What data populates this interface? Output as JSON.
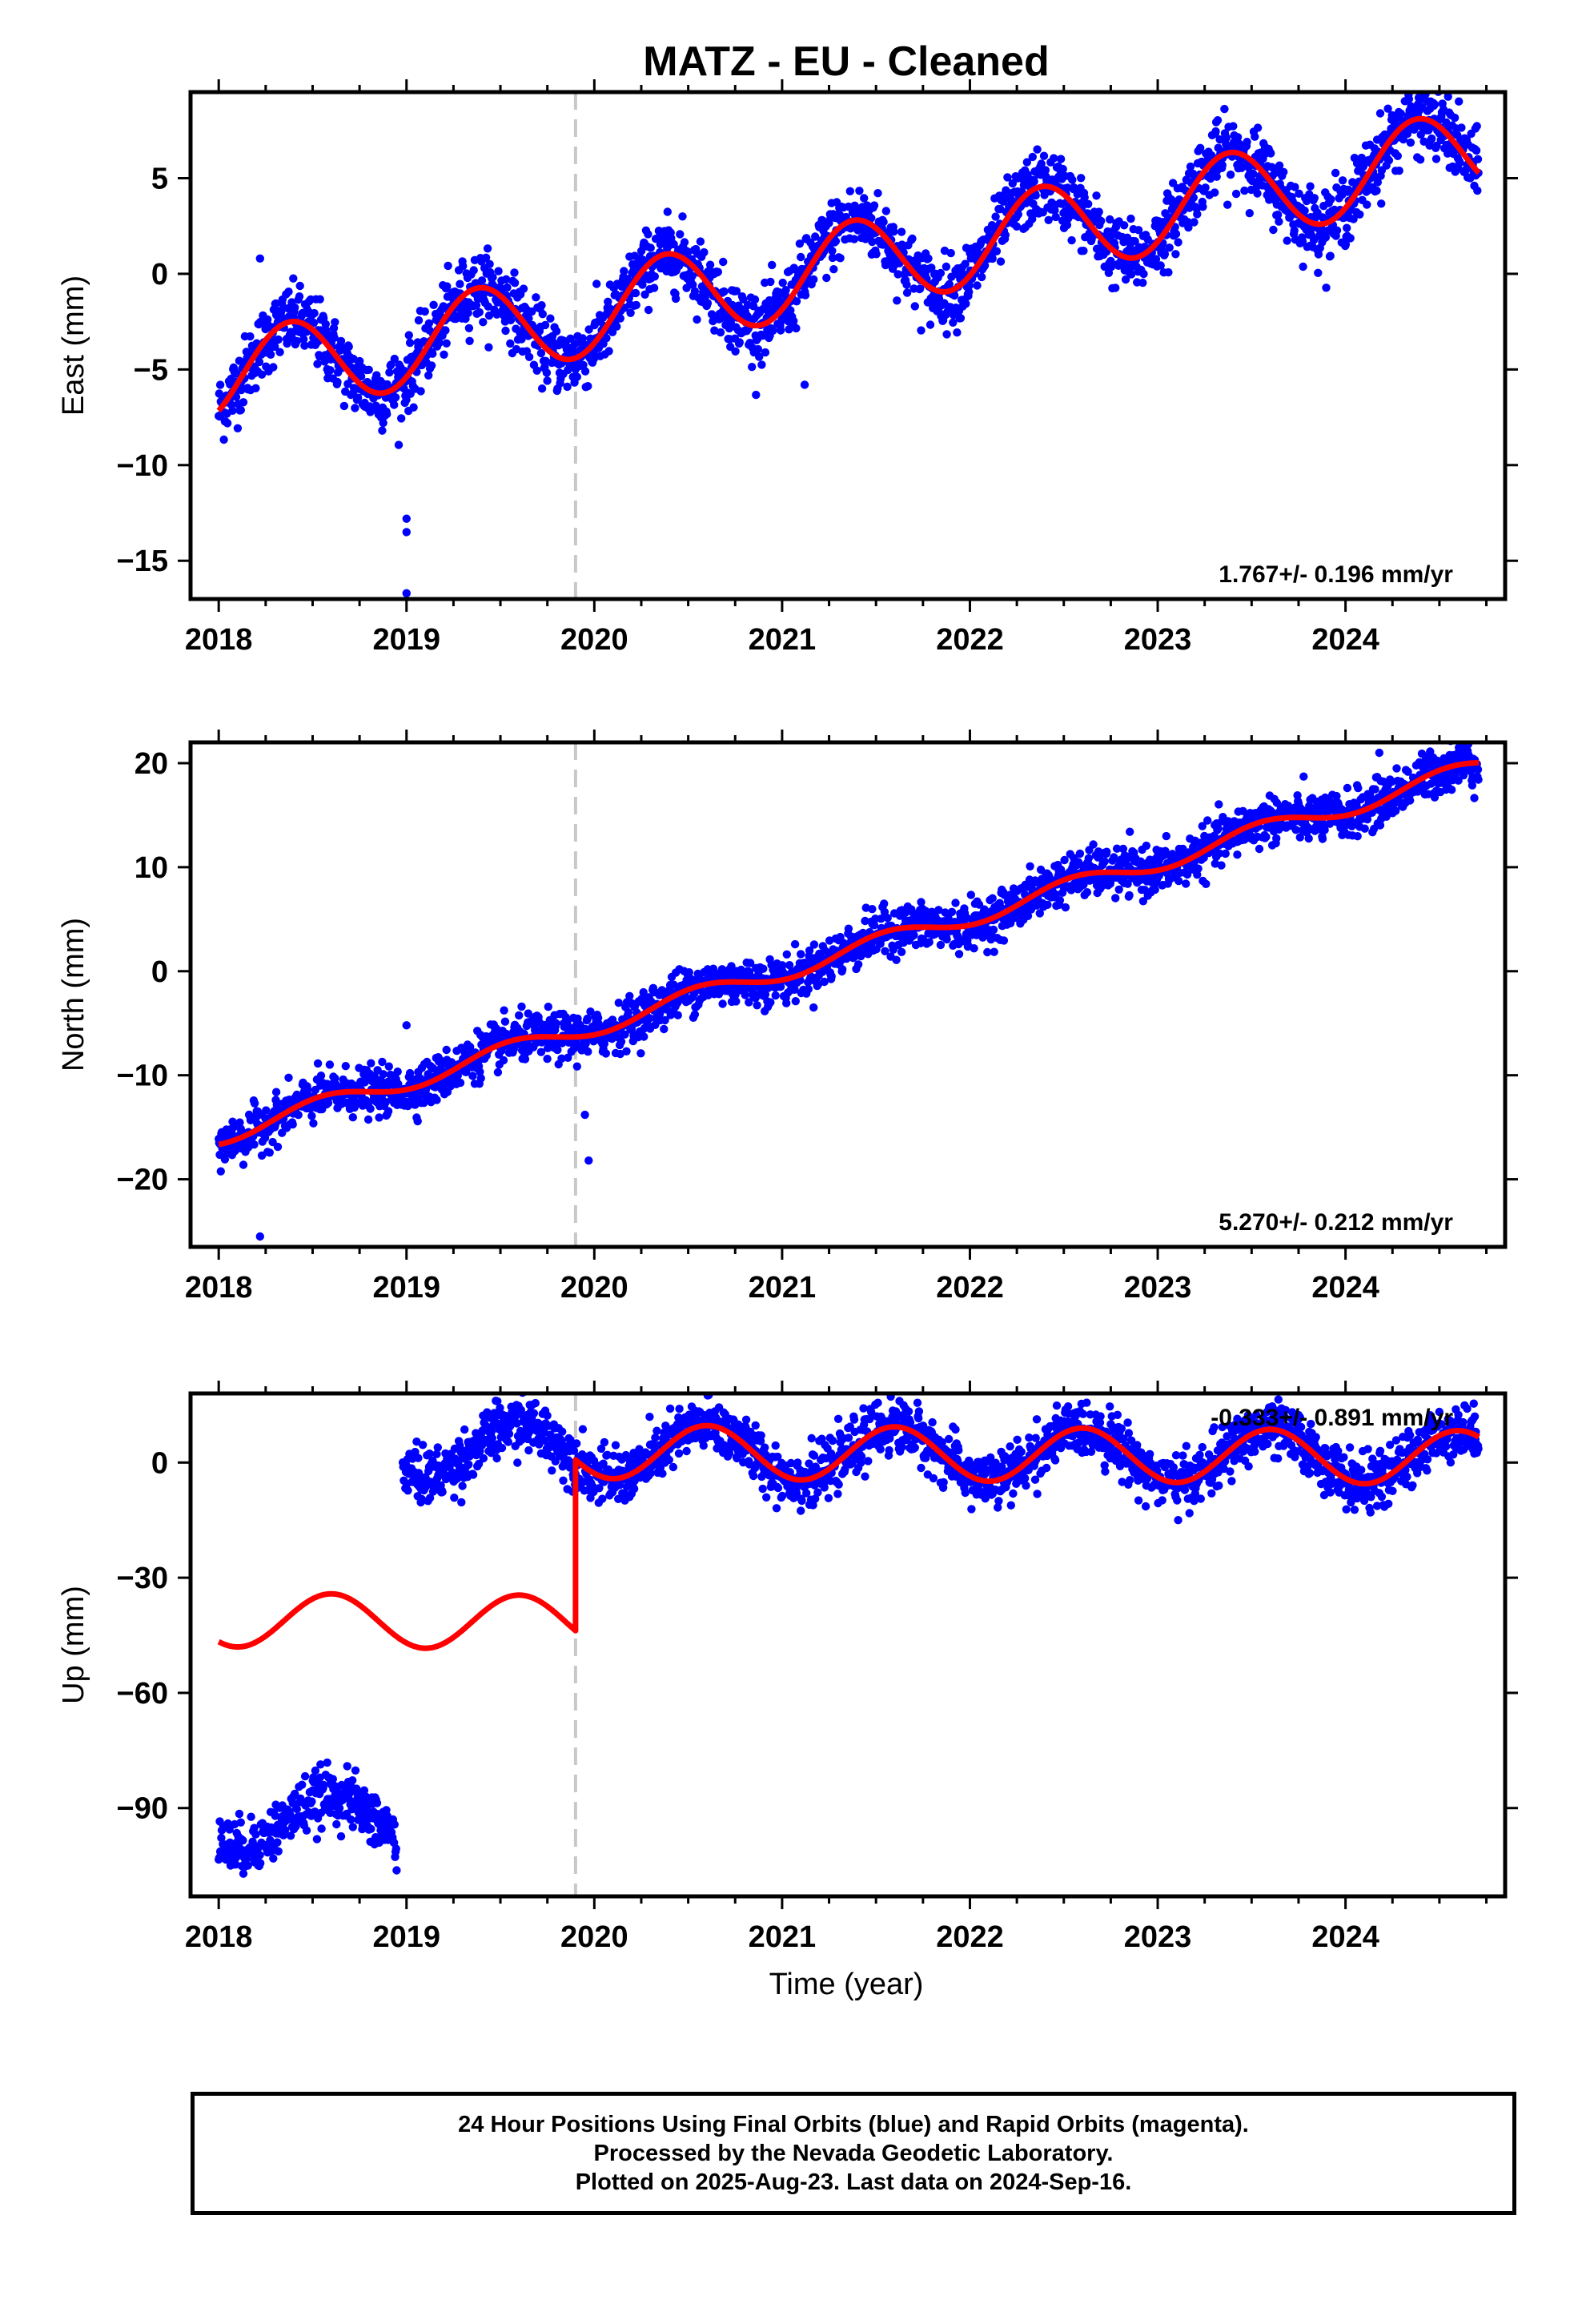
{
  "title": "MATZ  - EU - Cleaned",
  "xlabel": "Time (year)",
  "colors": {
    "data": "#0000ff",
    "model": "#ff0000",
    "event_line": "#c8c8c8",
    "frame": "#000000"
  },
  "caption": [
    "24 Hour Positions Using Final Orbits (blue) and Rapid Orbits (magenta).",
    "Processed by the Nevada Geodetic Laboratory.",
    "Plotted on 2025-Aug-23. Last data on 2024-Sep-16."
  ],
  "chart_data": [
    {
      "type": "scatter",
      "ylabel": "East (mm)",
      "xlim": [
        2017.85,
        2024.85
      ],
      "ylim": [
        -17.0,
        9.5
      ],
      "x_ticks": [
        2018,
        2019,
        2020,
        2021,
        2022,
        2023,
        2024
      ],
      "y_ticks": [
        5,
        0,
        -5,
        -10,
        -15
      ],
      "y_tick_labels": [
        "5",
        "0",
        "−5",
        "−10",
        "−15"
      ],
      "event_line_x": 2019.9,
      "rate_label": "1.767+/- 0.196 mm/yr",
      "rate_label_position": "bottom-right",
      "data_range": [
        2018.0,
        2024.71
      ],
      "model": {
        "offset": -5.48,
        "rate": 1.767,
        "annual_amp": 2.3,
        "annual_peak": 2018.38,
        "noise_mm": 0.9
      },
      "outliers": [
        {
          "x": 2019.0,
          "y": -12.8
        },
        {
          "x": 2019.0,
          "y": -13.5
        },
        {
          "x": 2019.0,
          "y": -16.7
        },
        {
          "x": 2018.22,
          "y": 0.8
        },
        {
          "x": 2021.12,
          "y": -5.8
        }
      ],
      "gaps": []
    },
    {
      "type": "scatter",
      "ylabel": "North (mm)",
      "xlim": [
        2017.85,
        2024.85
      ],
      "ylim": [
        -26.5,
        22.0
      ],
      "x_ticks": [
        2018,
        2019,
        2020,
        2021,
        2022,
        2023,
        2024
      ],
      "y_ticks": [
        20,
        10,
        0,
        -10,
        -20
      ],
      "y_tick_labels": [
        "20",
        "10",
        "0",
        "−10",
        "−20"
      ],
      "event_line_x": 2019.9,
      "rate_label": "5.270+/- 0.212 mm/yr",
      "rate_label_position": "bottom-right",
      "data_range": [
        2018.0,
        2024.71
      ],
      "model": {
        "offset": -15.8,
        "rate": 5.27,
        "annual_amp": 0.9,
        "annual_peak": 2018.55,
        "noise_mm": 1.1
      },
      "outliers": [
        {
          "x": 2018.22,
          "y": -25.5
        },
        {
          "x": 2019.95,
          "y": -13.8
        },
        {
          "x": 2019.97,
          "y": -18.2
        },
        {
          "x": 2019.0,
          "y": -5.2
        },
        {
          "x": 2024.18,
          "y": 21.0
        }
      ],
      "gaps": []
    },
    {
      "type": "scatter",
      "ylabel": "Up (mm)",
      "xlim": [
        2017.85,
        2024.85
      ],
      "ylim": [
        -113,
        18
      ],
      "x_ticks": [
        2018,
        2019,
        2020,
        2021,
        2022,
        2023,
        2024
      ],
      "y_ticks": [
        0,
        -30,
        -60,
        -90
      ],
      "y_tick_labels": [
        "0",
        "−30",
        "−60",
        "−90"
      ],
      "event_line_x": 2019.9,
      "rate_label": "-0.333+/- 0.891 mm/yr",
      "rate_label_position": "top-right",
      "data_range": [
        2018.0,
        2024.71
      ],
      "model": {
        "offset": 3.5,
        "rate": -0.333,
        "annual_amp": 7.0,
        "annual_peak": 2018.6,
        "noise_mm": 3.5
      },
      "pre_step_offset": -44.5,
      "step_x": 2019.9,
      "offset_segment": {
        "x_range": [
          2018.0,
          2018.95
        ],
        "shift": -97.0
      },
      "outliers": [],
      "gaps": []
    }
  ]
}
